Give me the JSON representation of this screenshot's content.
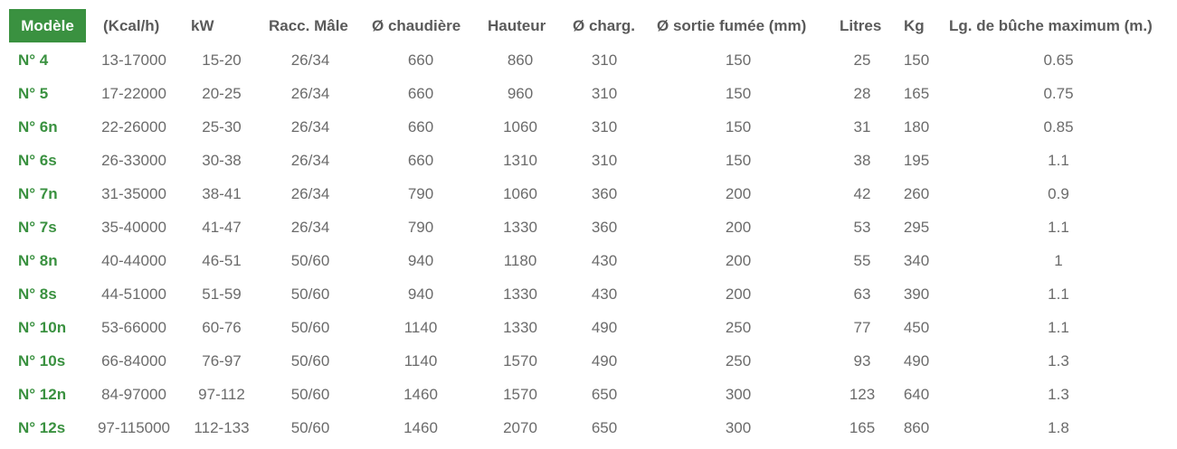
{
  "accent_color": "#3a9140",
  "headers": [
    "Modèle",
    "(Kcal/h)",
    "kW",
    "Racc. Mâle",
    "Ø chaudière",
    "Hauteur",
    "Ø charg.",
    "Ø sortie fumée (mm)",
    "Litres",
    "Kg",
    "Lg. de bûche maximum (m.)"
  ],
  "rows": [
    [
      "N° 4",
      "13-17000",
      "15-20",
      "26/34",
      "660",
      "860",
      "310",
      "150",
      "25",
      "150",
      "0.65"
    ],
    [
      "N° 5",
      "17-22000",
      "20-25",
      "26/34",
      "660",
      "960",
      "310",
      "150",
      "28",
      "165",
      "0.75"
    ],
    [
      "N° 6n",
      "22-26000",
      "25-30",
      "26/34",
      "660",
      "1060",
      "310",
      "150",
      "31",
      "180",
      "0.85"
    ],
    [
      "N° 6s",
      "26-33000",
      "30-38",
      "26/34",
      "660",
      "1310",
      "310",
      "150",
      "38",
      "195",
      "1.1"
    ],
    [
      "N° 7n",
      "31-35000",
      "38-41",
      "26/34",
      "790",
      "1060",
      "360",
      "200",
      "42",
      "260",
      "0.9"
    ],
    [
      "N° 7s",
      "35-40000",
      "41-47",
      "26/34",
      "790",
      "1330",
      "360",
      "200",
      "53",
      "295",
      "1.1"
    ],
    [
      "N° 8n",
      "40-44000",
      "46-51",
      "50/60",
      "940",
      "1180",
      "430",
      "200",
      "55",
      "340",
      "1"
    ],
    [
      "N° 8s",
      "44-51000",
      "51-59",
      "50/60",
      "940",
      "1330",
      "430",
      "200",
      "63",
      "390",
      "1.1"
    ],
    [
      "N° 10n",
      "53-66000",
      "60-76",
      "50/60",
      "1140",
      "1330",
      "490",
      "250",
      "77",
      "450",
      "1.1"
    ],
    [
      "N° 10s",
      "66-84000",
      "76-97",
      "50/60",
      "1140",
      "1570",
      "490",
      "250",
      "93",
      "490",
      "1.3"
    ],
    [
      "N° 12n",
      "84-97000",
      "97-112",
      "50/60",
      "1460",
      "1570",
      "650",
      "300",
      "123",
      "640",
      "1.3"
    ],
    [
      "N° 12s",
      "97-115000",
      "112-133",
      "50/60",
      "1460",
      "2070",
      "650",
      "300",
      "165",
      "860",
      "1.8"
    ]
  ]
}
